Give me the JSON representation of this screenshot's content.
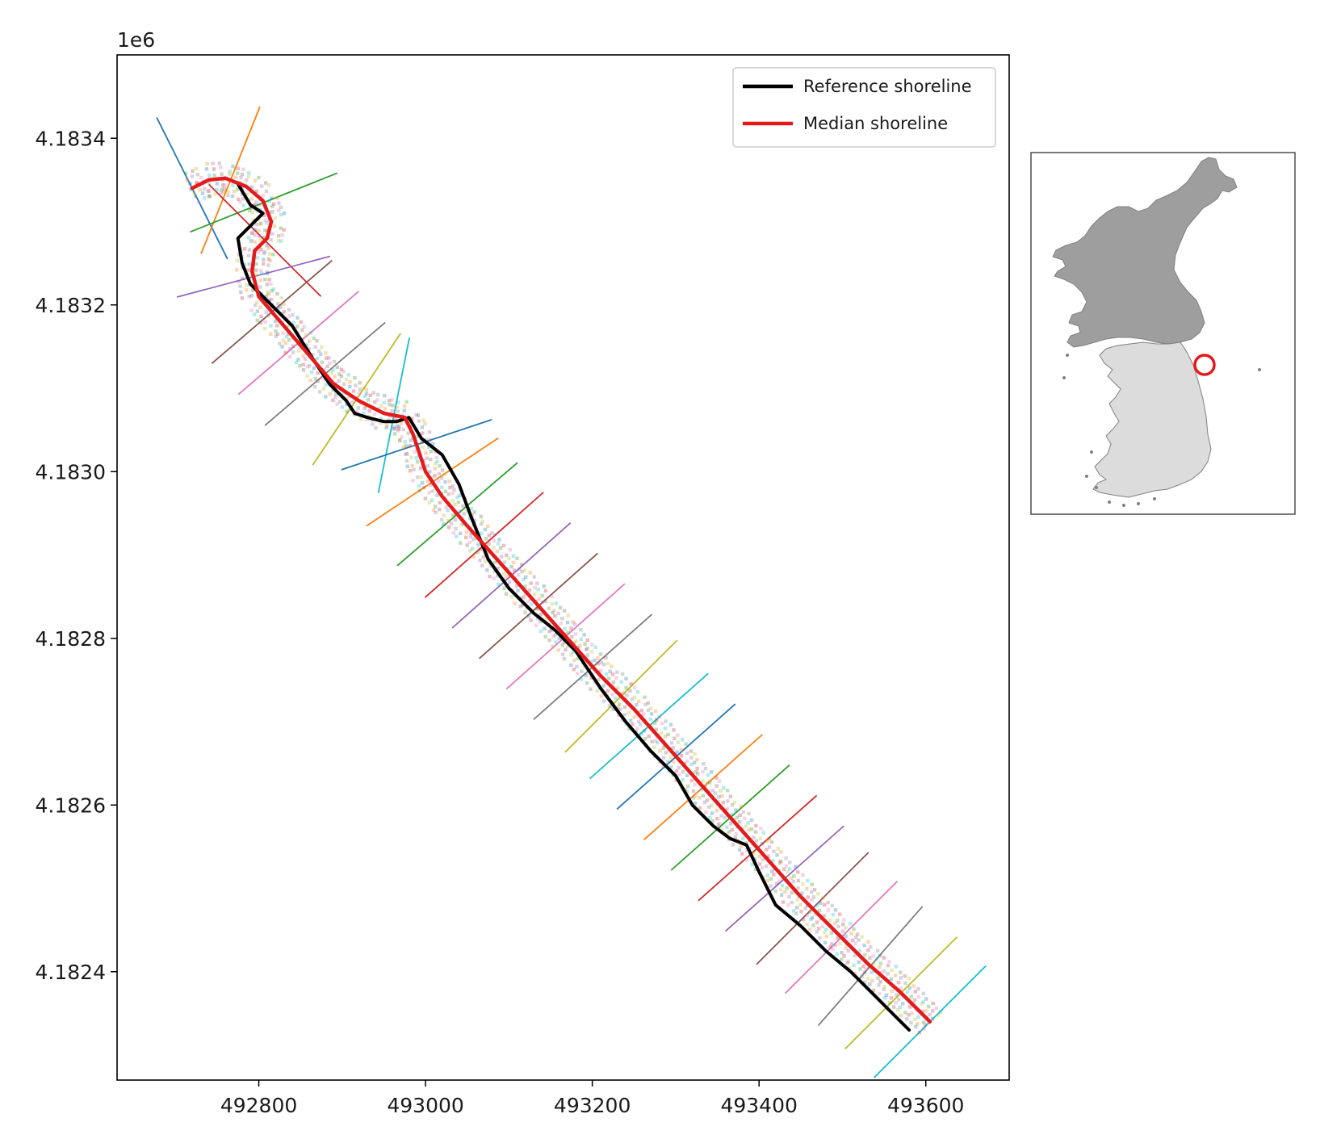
{
  "chart_data": [
    {
      "type": "line",
      "offset_label": "1e6",
      "xlim": [
        492630,
        493700
      ],
      "ylim": [
        4182270,
        4183500
      ],
      "x_ticks": [
        492800,
        493000,
        493200,
        493400,
        493600
      ],
      "x_tick_labels": [
        "492800",
        "493000",
        "493200",
        "493400",
        "493600"
      ],
      "y_ticks": [
        4182400,
        4182600,
        4182800,
        4183000,
        4183200,
        4183400
      ],
      "y_tick_labels": [
        "4.1824",
        "4.1826",
        "4.1828",
        "4.1830",
        "4.1832",
        "4.1834"
      ],
      "grid": false,
      "legend_position": "top-right",
      "series": [
        {
          "name": "Reference shoreline",
          "color": "#000000",
          "x": [
            492775,
            492790,
            492805,
            492785,
            492775,
            492780,
            492790,
            492810,
            492840,
            492865,
            492885,
            492905,
            492915,
            492930,
            492950,
            492965,
            492980,
            492995,
            493020,
            493040,
            493055,
            493075,
            493100,
            493130,
            493155,
            493180,
            493210,
            493240,
            493270,
            493300,
            493320,
            493345,
            493365,
            493385,
            493400,
            493420,
            493450,
            493480,
            493510,
            493540,
            493565,
            493580
          ],
          "y": [
            4183345,
            4183320,
            4183310,
            4183290,
            4183280,
            4183250,
            4183225,
            4183205,
            4183175,
            4183135,
            4183105,
            4183085,
            4183070,
            4183065,
            4183060,
            4183060,
            4183065,
            4183040,
            4183020,
            4182985,
            4182945,
            4182895,
            4182860,
            4182830,
            4182810,
            4182785,
            4182740,
            4182700,
            4182665,
            4182635,
            4182600,
            4182575,
            4182560,
            4182552,
            4182520,
            4182480,
            4182455,
            4182425,
            4182400,
            4182370,
            4182345,
            4182330
          ]
        },
        {
          "name": "Median shoreline",
          "color": "#e41a1c",
          "x": [
            492720,
            492740,
            492760,
            492785,
            492805,
            492815,
            492810,
            492795,
            492792,
            492800,
            492830,
            492860,
            492890,
            492920,
            492950,
            492975,
            492985,
            493000,
            493020,
            493050,
            493090,
            493130,
            493170,
            493210,
            493250,
            493290,
            493330,
            493370,
            493410,
            493450,
            493490,
            493530,
            493570,
            493605
          ],
          "y": [
            4183340,
            4183350,
            4183352,
            4183342,
            4183325,
            4183300,
            4183280,
            4183265,
            4183240,
            4183210,
            4183175,
            4183140,
            4183105,
            4183085,
            4183070,
            4183065,
            4183045,
            4183000,
            4182970,
            4182935,
            4182890,
            4182845,
            4182800,
            4182755,
            4182715,
            4182670,
            4182625,
            4182580,
            4182535,
            4182490,
            4182450,
            4182410,
            4182375,
            4182340
          ]
        }
      ]
    },
    {
      "type": "map",
      "markers": [
        {
          "shape": "circle",
          "color": "#e41a1c"
        }
      ]
    }
  ],
  "colors": {
    "transects": [
      "#1f77b4",
      "#ff7f0e",
      "#2ca02c",
      "#d62728",
      "#9467bd",
      "#8c564b",
      "#e377c2",
      "#7f7f7f",
      "#bcbd22",
      "#17becf"
    ],
    "north_korea": "#9e9e9e",
    "south_korea": "#dcdcdc",
    "map_outline": "#808080"
  }
}
